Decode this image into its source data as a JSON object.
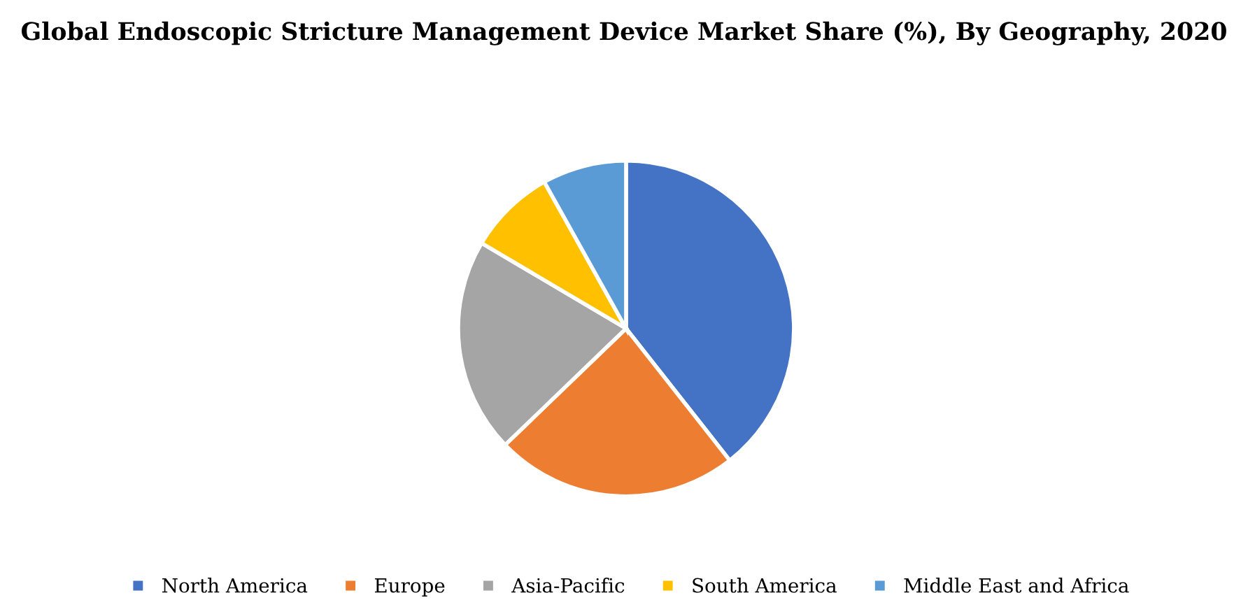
{
  "chart_data": {
    "type": "pie",
    "title": "Global Endoscopic Stricture Management Device Market Share (%), By Geography, 2020",
    "categories": [
      "North America",
      "Europe",
      "Asia-Pacific",
      "South America",
      "Middle East and Africa"
    ],
    "values": [
      39.4,
      23.4,
      20.7,
      8.4,
      8.1
    ],
    "colors": [
      "#4472c4",
      "#ed7d31",
      "#a5a5a5",
      "#ffc000",
      "#5b9bd5"
    ],
    "legend": "bottom"
  }
}
